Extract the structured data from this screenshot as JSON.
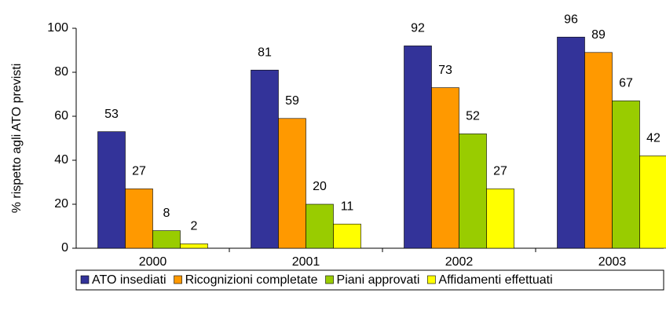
{
  "chart_data": {
    "type": "bar",
    "y_label": "% rispetto agli ATO previsti",
    "categories": [
      "2000",
      "2001",
      "2002",
      "2003"
    ],
    "series": [
      {
        "name": "ATO insediati",
        "color": "#333399",
        "values": [
          53,
          81,
          92,
          96
        ]
      },
      {
        "name": "Ricognizioni completate",
        "color": "#FF9900",
        "values": [
          27,
          59,
          73,
          89
        ]
      },
      {
        "name": "Piani approvati",
        "color": "#99CC00",
        "values": [
          8,
          20,
          52,
          67
        ]
      },
      {
        "name": "Affidamenti effettuati",
        "color": "#FFFF00",
        "values": [
          2,
          11,
          27,
          42
        ]
      }
    ],
    "ylim": [
      0,
      100
    ],
    "yticks": [
      0,
      20,
      40,
      60,
      80,
      100
    ],
    "grid": false,
    "legend": "bottom"
  }
}
